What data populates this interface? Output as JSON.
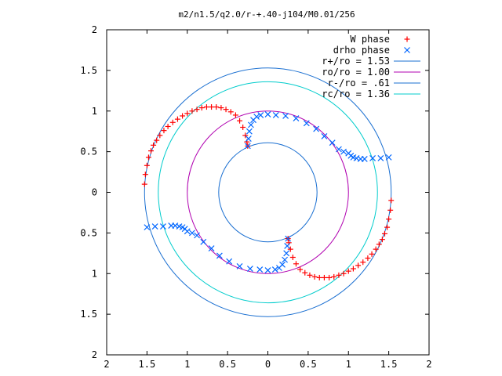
{
  "chart_data": {
    "type": "scatter",
    "title": "m2/n1.5/q2.0/r-+.40-j104/M0.01/256",
    "xlabel": "",
    "ylabel": "",
    "xlim": [
      -2,
      2
    ],
    "ylim": [
      -2,
      2
    ],
    "x_tick_labels": [
      "2",
      "1.5",
      "1",
      "0.5",
      "0",
      "0.5",
      "1",
      "1.5",
      "2"
    ],
    "y_tick_labels": [
      "2",
      "1.5",
      "1",
      "0.5",
      "0",
      "0.5",
      "1",
      "1.5",
      "2"
    ],
    "grid": false,
    "legend_position": "top-right",
    "series": [
      {
        "name": "W phase",
        "marker": "plus",
        "color": "#ff0000",
        "x": [
          -1.53,
          -1.52,
          -1.5,
          -1.48,
          -1.45,
          -1.42,
          -1.38,
          -1.34,
          -1.29,
          -1.24,
          -1.18,
          -1.12,
          -1.06,
          -1.0,
          -0.94,
          -0.88,
          -0.82,
          -0.76,
          -0.7,
          -0.64,
          -0.58,
          -0.52,
          -0.46,
          -0.4,
          -0.35,
          -0.31,
          -0.28,
          -0.26,
          -0.25,
          1.53,
          1.52,
          1.5,
          1.48,
          1.45,
          1.42,
          1.38,
          1.34,
          1.29,
          1.24,
          1.18,
          1.12,
          1.06,
          1.0,
          0.94,
          0.88,
          0.82,
          0.76,
          0.7,
          0.64,
          0.58,
          0.52,
          0.46,
          0.4,
          0.35,
          0.31,
          0.28,
          0.26,
          0.25
        ],
        "y": [
          0.1,
          0.22,
          0.33,
          0.43,
          0.51,
          0.58,
          0.64,
          0.7,
          0.76,
          0.81,
          0.86,
          0.9,
          0.94,
          0.97,
          1.0,
          1.02,
          1.04,
          1.05,
          1.05,
          1.05,
          1.04,
          1.02,
          0.99,
          0.95,
          0.88,
          0.8,
          0.7,
          0.62,
          0.57,
          -0.1,
          -0.22,
          -0.33,
          -0.43,
          -0.51,
          -0.58,
          -0.64,
          -0.7,
          -0.76,
          -0.81,
          -0.86,
          -0.9,
          -0.94,
          -0.97,
          -1.0,
          -1.02,
          -1.04,
          -1.05,
          -1.05,
          -1.05,
          -1.04,
          -1.02,
          -0.99,
          -0.95,
          -0.88,
          -0.8,
          -0.7,
          -0.62,
          -0.57
        ]
      },
      {
        "name": "drho phase",
        "marker": "cross",
        "color": "#0066ff",
        "x": [
          -0.25,
          -0.24,
          -0.23,
          -0.21,
          -0.18,
          -0.14,
          -0.09,
          0.0,
          0.1,
          0.22,
          0.35,
          0.48,
          0.6,
          0.7,
          0.8,
          0.88,
          0.94,
          1.0,
          1.03,
          1.06,
          1.1,
          1.15,
          1.2,
          1.3,
          1.4,
          1.5,
          0.25,
          0.24,
          0.23,
          0.21,
          0.18,
          0.14,
          0.09,
          0.0,
          -0.1,
          -0.22,
          -0.35,
          -0.48,
          -0.6,
          -0.7,
          -0.8,
          -0.88,
          -0.94,
          -1.0,
          -1.03,
          -1.06,
          -1.1,
          -1.15,
          -1.2,
          -1.3,
          -1.4,
          -1.5
        ],
        "y": [
          0.57,
          0.66,
          0.75,
          0.83,
          0.89,
          0.93,
          0.95,
          0.96,
          0.95,
          0.94,
          0.91,
          0.85,
          0.78,
          0.69,
          0.61,
          0.53,
          0.5,
          0.48,
          0.45,
          0.43,
          0.42,
          0.41,
          0.41,
          0.42,
          0.42,
          0.43,
          -0.57,
          -0.66,
          -0.75,
          -0.83,
          -0.89,
          -0.93,
          -0.95,
          -0.96,
          -0.95,
          -0.94,
          -0.91,
          -0.85,
          -0.78,
          -0.69,
          -0.61,
          -0.53,
          -0.5,
          -0.48,
          -0.45,
          -0.43,
          -0.42,
          -0.41,
          -0.41,
          -0.42,
          -0.42,
          -0.43
        ]
      },
      {
        "name": "r+/ro = 1.53",
        "type": "circle",
        "radius": 1.53,
        "color": "#1a6fd1"
      },
      {
        "name": "ro/ro = 1.00",
        "type": "circle",
        "radius": 1.0,
        "color": "#b000b0"
      },
      {
        "name": "r-/ro = .61",
        "type": "circle",
        "radius": 0.61,
        "color": "#1a6fd1"
      },
      {
        "name": "rc/ro = 1.36",
        "type": "circle",
        "radius": 1.36,
        "color": "#00cccc"
      }
    ]
  }
}
